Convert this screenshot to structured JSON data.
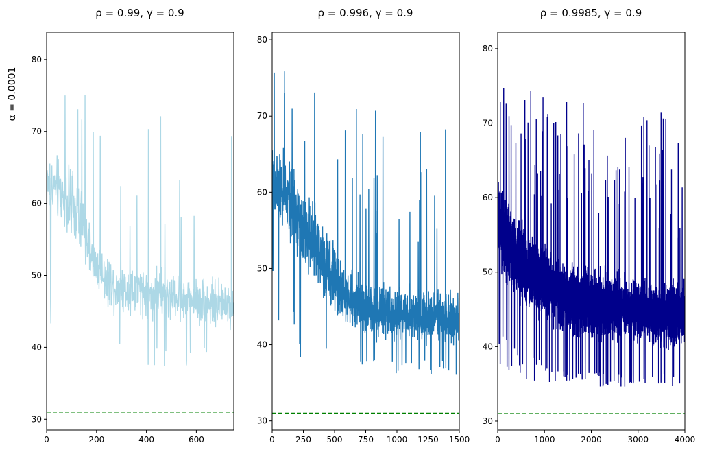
{
  "figure": {
    "row_label": "α = 0.0001",
    "reference_line": {
      "y": 31,
      "color": "#008000",
      "style": "dashed"
    }
  },
  "chart_data": [
    {
      "type": "line",
      "title": "ρ = 0.99, γ = 0.9",
      "xlabel": "",
      "ylabel": "α = 0.0001",
      "xlim": [
        0,
        750
      ],
      "ylim": [
        28.5,
        83.8
      ],
      "xticks": [
        0,
        200,
        400,
        600
      ],
      "yticks": [
        30,
        40,
        50,
        60,
        70,
        80
      ],
      "color": "#add8e6",
      "grid": false,
      "legend": "none",
      "series": [
        {
          "points": 750,
          "anchors": [
            [
              0,
              62
            ],
            [
              40,
              62
            ],
            [
              80,
              60
            ],
            [
              120,
              57
            ],
            [
              150,
              56
            ],
            [
              160,
              54
            ],
            [
              200,
              51
            ],
            [
              250,
              49
            ],
            [
              300,
              47.5
            ],
            [
              400,
              47
            ],
            [
              500,
              46.5
            ],
            [
              600,
              45
            ],
            [
              700,
              44.5
            ],
            [
              750,
              44
            ]
          ],
          "band_upper": [
            [
              0,
              73
            ],
            [
              80,
              72
            ],
            [
              150,
              68
            ],
            [
              165,
              62
            ],
            [
              250,
              57
            ],
            [
              400,
              56
            ],
            [
              550,
              55
            ],
            [
              750,
              54
            ]
          ],
          "band_lower": [
            [
              0,
              54
            ],
            [
              80,
              50
            ],
            [
              160,
              46
            ],
            [
              250,
              41
            ],
            [
              400,
              40
            ],
            [
              600,
              40
            ],
            [
              750,
              40
            ]
          ],
          "min": 35.3,
          "max": 81.2
        }
      ],
      "reference_line_y": 31
    },
    {
      "type": "line",
      "title": "ρ = 0.996, γ = 0.9",
      "xlabel": "",
      "ylabel": "",
      "xlim": [
        0,
        1500
      ],
      "ylim": [
        28.8,
        81
      ],
      "xticks": [
        0,
        250,
        500,
        750,
        1000,
        1250,
        1500
      ],
      "yticks": [
        30,
        40,
        50,
        60,
        70,
        80
      ],
      "color": "#1f77b4",
      "grid": false,
      "legend": "none",
      "series": [
        {
          "points": 1500,
          "anchors": [
            [
              0,
              62
            ],
            [
              100,
              60
            ],
            [
              250,
              56
            ],
            [
              400,
              52
            ],
            [
              500,
              48
            ],
            [
              600,
              45
            ],
            [
              750,
              43
            ],
            [
              1000,
              42
            ],
            [
              1250,
              41.5
            ],
            [
              1500,
              41
            ]
          ],
          "band_upper": [
            [
              0,
              72
            ],
            [
              150,
              70
            ],
            [
              300,
              65
            ],
            [
              450,
              60
            ],
            [
              600,
              55
            ],
            [
              800,
              53
            ],
            [
              1000,
              53
            ],
            [
              1500,
              52
            ]
          ],
          "band_lower": [
            [
              0,
              50
            ],
            [
              200,
              44
            ],
            [
              400,
              40
            ],
            [
              600,
              38.5
            ],
            [
              1000,
              38
            ],
            [
              1500,
              38
            ]
          ],
          "min": 35.1,
          "max": 78.5
        }
      ],
      "reference_line_y": 31
    },
    {
      "type": "line",
      "title": "ρ = 0.9985, γ = 0.9",
      "xlabel": "",
      "ylabel": "",
      "xlim": [
        0,
        4000
      ],
      "ylim": [
        28.8,
        82.2
      ],
      "xticks": [
        0,
        1000,
        2000,
        3000,
        4000
      ],
      "yticks": [
        30,
        40,
        50,
        60,
        70,
        80
      ],
      "color": "#00008b",
      "grid": false,
      "legend": "none",
      "series": [
        {
          "points": 4000,
          "anchors": [
            [
              0,
              58
            ],
            [
              300,
              54
            ],
            [
              700,
              50
            ],
            [
              1000,
              48
            ],
            [
              1500,
              46
            ],
            [
              2000,
              44.5
            ],
            [
              3000,
              43
            ],
            [
              4000,
              42
            ]
          ],
          "band_upper": [
            [
              0,
              68
            ],
            [
              400,
              63
            ],
            [
              800,
              60
            ],
            [
              1500,
              57
            ],
            [
              2500,
              56
            ],
            [
              4000,
              54
            ]
          ],
          "band_lower": [
            [
              0,
              43
            ],
            [
              400,
              40
            ],
            [
              1000,
              38
            ],
            [
              1700,
              36.5
            ],
            [
              4000,
              36.5
            ]
          ],
          "min": 33.8,
          "max": 80.3
        }
      ],
      "reference_line_y": 31
    }
  ]
}
